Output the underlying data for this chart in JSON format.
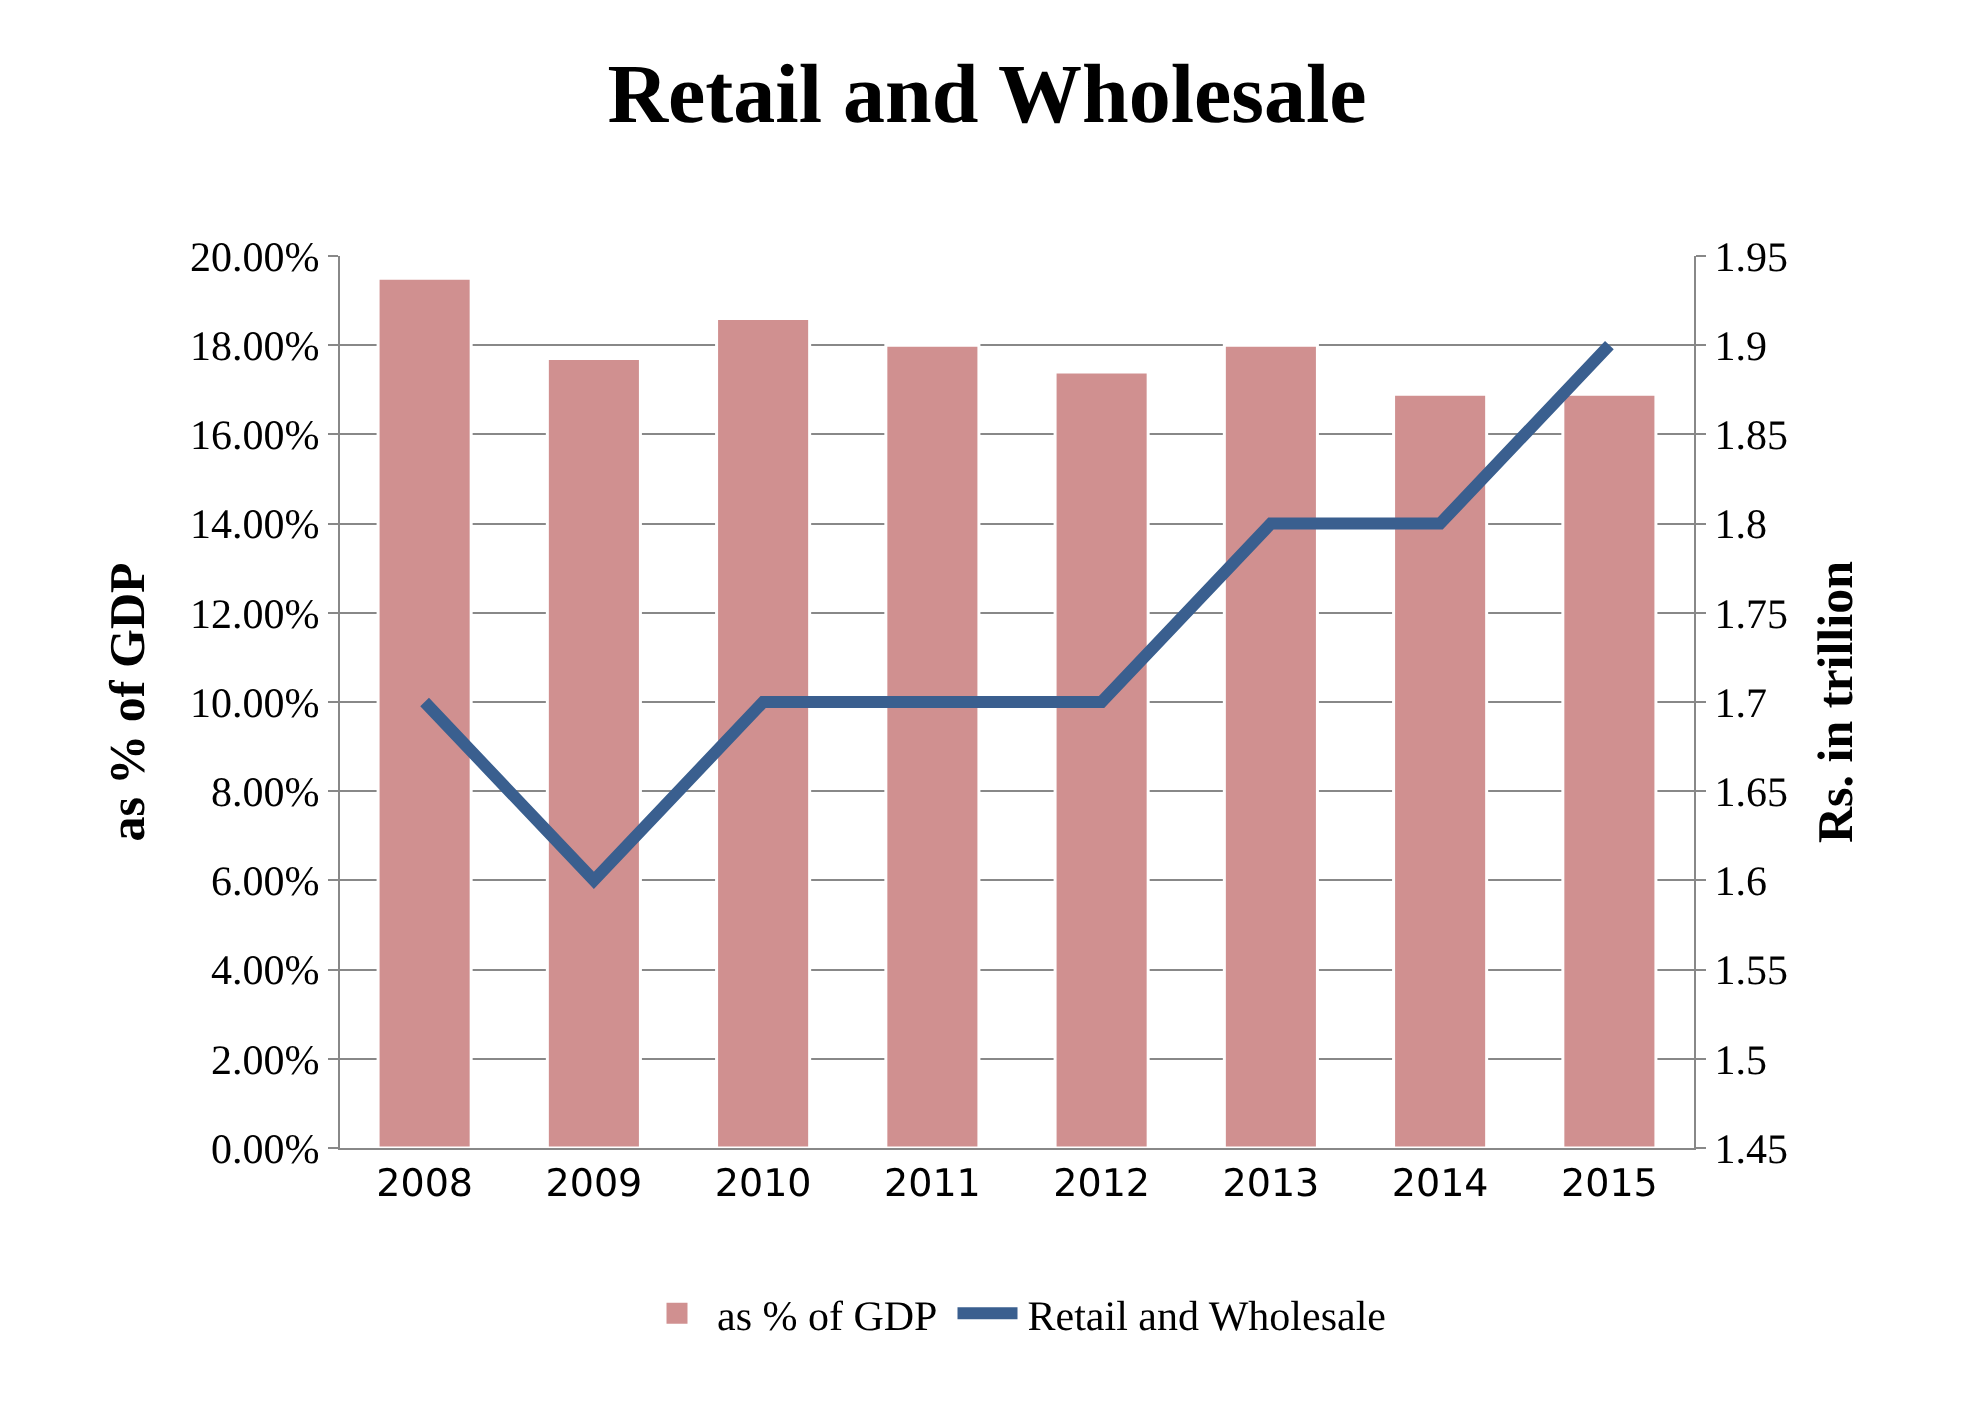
{
  "chart_data": {
    "type": "bar",
    "title": "Retail and Wholesale",
    "ylabel": "as % of GDP",
    "y2label": "Rs. in trillion",
    "categories": [
      "2008",
      "2009",
      "2010",
      "2011",
      "2012",
      "2013",
      "2014",
      "2015"
    ],
    "series": [
      {
        "name": "as % of GDP",
        "color": "#d09090",
        "values": [
          19.5,
          17.7,
          18.6,
          18.0,
          17.4,
          18.0,
          16.9,
          16.9
        ]
      },
      {
        "name": "Retail and Wholesale",
        "type": "line",
        "axis": "y2",
        "color": "#3a5f8f",
        "marker": "none",
        "line_style": "solid",
        "values": [
          1.7,
          1.6,
          1.7,
          1.7,
          1.7,
          1.8,
          1.8,
          1.9
        ]
      }
    ],
    "ylim": [
      0,
      20
    ],
    "yticks": [
      {
        "value": 0,
        "label": "0.00%"
      },
      {
        "value": 2,
        "label": "2.00%"
      },
      {
        "value": 4,
        "label": "4.00%"
      },
      {
        "value": 6,
        "label": "6.00%"
      },
      {
        "value": 8,
        "label": "8.00%"
      },
      {
        "value": 10,
        "label": "10.00%"
      },
      {
        "value": 12,
        "label": "12.00%"
      },
      {
        "value": 14,
        "label": "14.00%"
      },
      {
        "value": 16,
        "label": "16.00%"
      },
      {
        "value": 18,
        "label": "18.00%"
      },
      {
        "value": 20,
        "label": "20.00%"
      }
    ],
    "y2lim": [
      1.45,
      1.95
    ],
    "y2ticks": [
      1.45,
      1.5,
      1.55,
      1.6,
      1.65,
      1.7,
      1.75,
      1.8,
      1.85,
      1.9,
      1.95
    ],
    "grid": "y",
    "legend": "bottom"
  }
}
